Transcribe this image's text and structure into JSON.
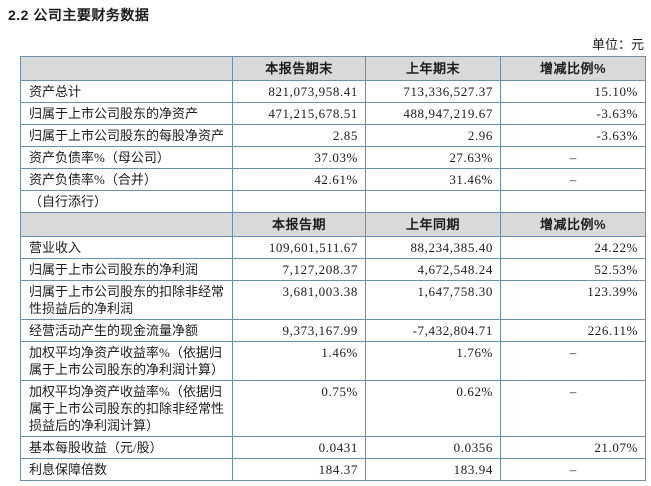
{
  "page": {
    "title": "2.2 公司主要财务数据",
    "unit_label": "单位：元"
  },
  "colors": {
    "border": "#6b90a9",
    "header_bg": "#d9d9d9",
    "text": "#1c1c1c"
  },
  "table": {
    "na_dash": "–",
    "sections": [
      {
        "columns": [
          "",
          "本报告期末",
          "上年期末",
          "增减比例%"
        ],
        "rows": [
          {
            "label": "资产总计",
            "current": "821,073,958.41",
            "prior": "713,336,527.37",
            "change": "15.10%"
          },
          {
            "label": "归属于上市公司股东的净资产",
            "current": "471,215,678.51",
            "prior": "488,947,219.67",
            "change": "-3.63%"
          },
          {
            "label": "归属于上市公司股东的每股净资产",
            "current": "2.85",
            "prior": "2.96",
            "change": "-3.63%"
          },
          {
            "label": "资产负债率%（母公司）",
            "current": "37.03%",
            "prior": "27.63%",
            "change": "–"
          },
          {
            "label": "资产负债率%（合并）",
            "current": "42.61%",
            "prior": "31.46%",
            "change": "–"
          },
          {
            "label": "（自行添行）",
            "current": "",
            "prior": "",
            "change": ""
          }
        ]
      },
      {
        "columns": [
          "",
          "本报告期",
          "上年同期",
          "增减比例%"
        ],
        "rows": [
          {
            "label": "营业收入",
            "current": "109,601,511.67",
            "prior": "88,234,385.40",
            "change": "24.22%"
          },
          {
            "label": "归属于上市公司股东的净利润",
            "current": "7,127,208.37",
            "prior": "4,672,548.24",
            "change": "52.53%"
          },
          {
            "label": "归属于上市公司股东的扣除非经常性损益后的净利润",
            "current": "3,681,003.38",
            "prior": "1,647,758.30",
            "change": "123.39%"
          },
          {
            "label": "经营活动产生的现金流量净额",
            "current": "9,373,167.99",
            "prior": "-7,432,804.71",
            "change": "226.11%"
          },
          {
            "label": "加权平均净资产收益率%（依据归属于上市公司股东的净利润计算）",
            "current": "1.46%",
            "prior": "1.76%",
            "change": "–"
          },
          {
            "label": "加权平均净资产收益率%（依据归属于上市公司股东的扣除非经常性损益后的净利润计算）",
            "current": "0.75%",
            "prior": "0.62%",
            "change": "–"
          },
          {
            "label": "基本每股收益（元/股）",
            "current": "0.0431",
            "prior": "0.0356",
            "change": "21.07%"
          },
          {
            "label": "利息保障倍数",
            "current": "184.37",
            "prior": "183.94",
            "change": "–"
          }
        ]
      }
    ]
  }
}
